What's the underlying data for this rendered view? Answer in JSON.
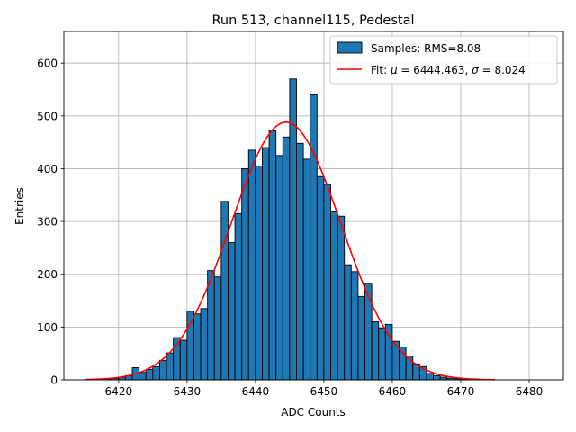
{
  "chart_data": {
    "type": "bar",
    "title": "Run 513, channel115, Pedestal",
    "xlabel": "ADC Counts",
    "ylabel": "Entries",
    "xlim": [
      6412,
      6485
    ],
    "ylim": [
      0,
      660
    ],
    "grid": true,
    "legend_position": "top-right",
    "x_ticks": [
      6420,
      6430,
      6440,
      6450,
      6460,
      6470,
      6480
    ],
    "y_ticks": [
      0,
      100,
      200,
      300,
      400,
      500,
      600
    ],
    "series": [
      {
        "name": "Samples: RMS=8.08",
        "kind": "histogram",
        "color": "#1f77b4",
        "edge_color": "#000000",
        "bins": [
          6418,
          6419,
          6420,
          6421,
          6422,
          6423,
          6424,
          6425,
          6426,
          6427,
          6428,
          6429,
          6430,
          6431,
          6432,
          6433,
          6434,
          6435,
          6436,
          6437,
          6438,
          6439,
          6440,
          6441,
          6442,
          6443,
          6444,
          6445,
          6446,
          6447,
          6448,
          6449,
          6450,
          6451,
          6452,
          6453,
          6454,
          6455,
          6456,
          6457,
          6458,
          6459,
          6460,
          6461,
          6462,
          6463,
          6464,
          6465,
          6466,
          6467,
          6468,
          6469,
          6470
        ],
        "counts": [
          2,
          3,
          5,
          8,
          23,
          14,
          20,
          25,
          37,
          51,
          80,
          75,
          130,
          125,
          135,
          207,
          195,
          338,
          260,
          315,
          400,
          435,
          405,
          440,
          472,
          425,
          460,
          570,
          448,
          418,
          540,
          385,
          370,
          318,
          310,
          218,
          205,
          158,
          183,
          110,
          98,
          105,
          73,
          62,
          45,
          30,
          25,
          12,
          8,
          5,
          3,
          2,
          1
        ]
      },
      {
        "name": "Fit: μ = 6444.463, σ = 8.024",
        "kind": "line",
        "color": "#ff0000",
        "mu": 6444.463,
        "sigma": 8.024,
        "amplitude": 488,
        "x_range": [
          6415,
          6475
        ]
      }
    ],
    "legend": {
      "samples_prefix": "Samples: RMS=8.08",
      "fit_prefix": "Fit: ",
      "mu_symbol": "μ",
      "mu_text": " = 6444.463, ",
      "sigma_symbol": "σ",
      "sigma_text": " = 8.024"
    }
  }
}
